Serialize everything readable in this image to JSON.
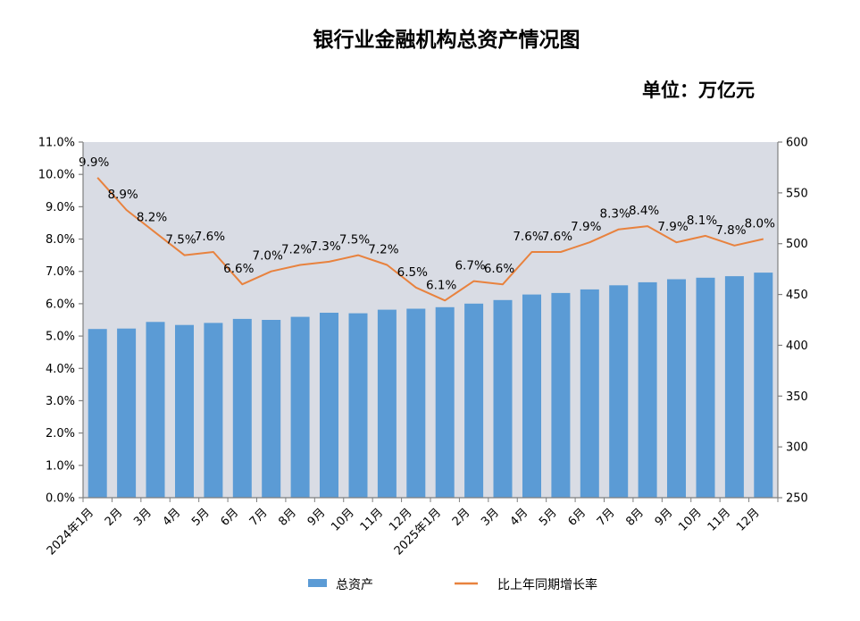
{
  "title": "银行业金融机构总资产情况图",
  "unit_label": "单位：万亿元",
  "legend": {
    "bar_label": "总资产",
    "line_label": "比上年同期增长率"
  },
  "chart_data": {
    "type": "bar",
    "subtype": "combo-bar-line-dual-axis",
    "title": "银行业金融机构总资产情况图",
    "unit": "单位：万亿元",
    "categories": [
      "2024年1月",
      "2月",
      "3月",
      "4月",
      "5月",
      "6月",
      "7月",
      "8月",
      "9月",
      "10月",
      "11月",
      "12月",
      "2025年1月",
      "2月",
      "3月",
      "4月",
      "5月",
      "6月",
      "7月",
      "8月",
      "9月",
      "10月",
      "11月",
      "12月"
    ],
    "series": [
      {
        "name": "总资产",
        "type": "bar",
        "yaxis": "right",
        "values": [
          416,
          416.5,
          423,
          420,
          422,
          426,
          425,
          428,
          432,
          431.5,
          435,
          436,
          437.5,
          441,
          444.5,
          450,
          451.5,
          455,
          459,
          462,
          465,
          466.5,
          468,
          471.5
        ]
      },
      {
        "name": "比上年同期增长率",
        "type": "line",
        "yaxis": "left",
        "values": [
          9.9,
          8.9,
          8.2,
          7.5,
          7.6,
          6.6,
          7.0,
          7.2,
          7.3,
          7.5,
          7.2,
          6.5,
          6.1,
          6.7,
          6.6,
          7.6,
          7.6,
          7.9,
          8.3,
          8.4,
          7.9,
          8.1,
          7.8,
          8.0
        ],
        "labels": [
          "9.9%",
          "8.9%",
          "8.2%",
          "7.5%",
          "7.6%",
          "6.6%",
          "7.0%",
          "7.2%",
          "7.3%",
          "7.5%",
          "7.2%",
          "6.5%",
          "6.1%",
          "6.7%",
          "6.6%",
          "7.6%",
          "7.6%",
          "7.9%",
          "8.3%",
          "8.4%",
          "7.9%",
          "8.1%",
          "7.8%",
          "8.0%"
        ]
      }
    ],
    "left_axis": {
      "min": 0,
      "max": 11,
      "step": 1,
      "tick_labels": [
        "0.0%",
        "1.0%",
        "2.0%",
        "3.0%",
        "4.0%",
        "5.0%",
        "6.0%",
        "7.0%",
        "8.0%",
        "9.0%",
        "10.0%",
        "11.0%"
      ]
    },
    "right_axis": {
      "min": 250,
      "max": 600,
      "step": 50,
      "tick_labels": [
        "250",
        "300",
        "350",
        "400",
        "450",
        "500",
        "550",
        "600"
      ]
    },
    "grid": false,
    "legend_position": "bottom",
    "colors": {
      "bar": "#5B9BD5",
      "line": "#E8823E",
      "plot_bg": "#D9DCE4",
      "axis_line": "#7F7F7F",
      "text": "#000000"
    }
  }
}
